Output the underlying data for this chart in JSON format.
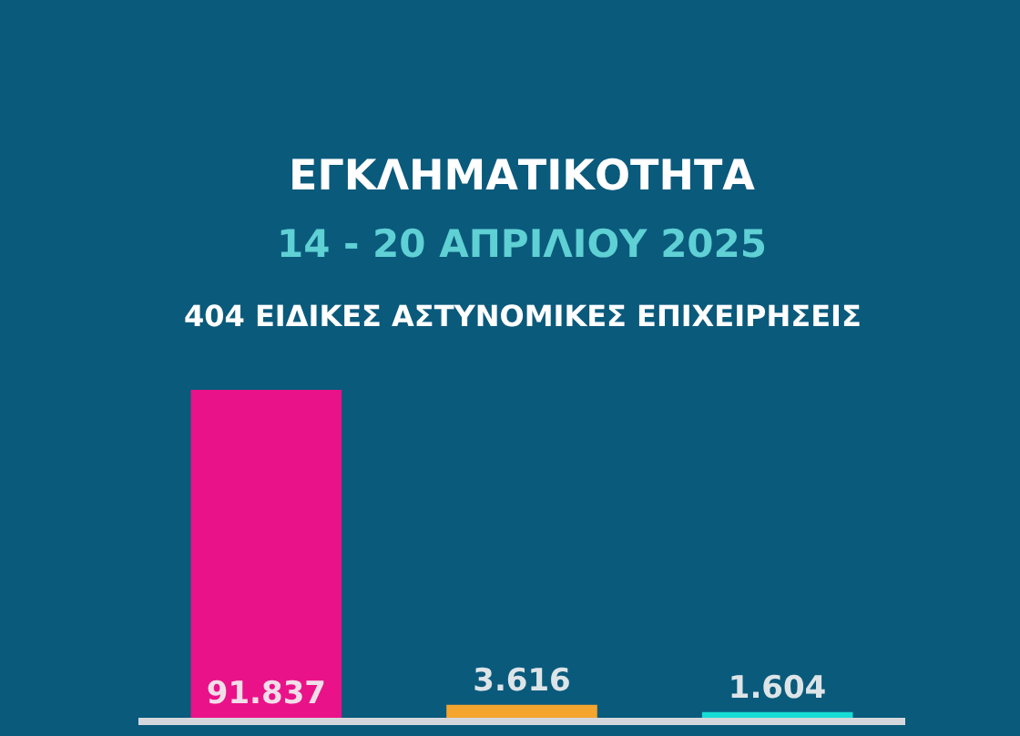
{
  "chart_data": {
    "type": "bar",
    "title": "ΕΓΚΛΗΜΑΤΙΚΟΤΗΤΑ",
    "subtitle": "14 - 20 ΑΠΡΙΛΙΟΥ 2025",
    "annotations": [
      "404 ΕΙΔΙΚΕΣ ΑΣΤΥΝΟΜΙΚΕΣ ΕΠΙΧΕΙΡΗΣΕΙΣ"
    ],
    "categories": [
      null,
      null,
      null
    ],
    "values": [
      91837,
      3616,
      1604
    ],
    "colors": [
      "#ea1288",
      "#f3a52e",
      "#17dcd4"
    ],
    "value_labels": [
      "91.837",
      "3.616",
      "1.604"
    ],
    "tick_labels": false
  }
}
